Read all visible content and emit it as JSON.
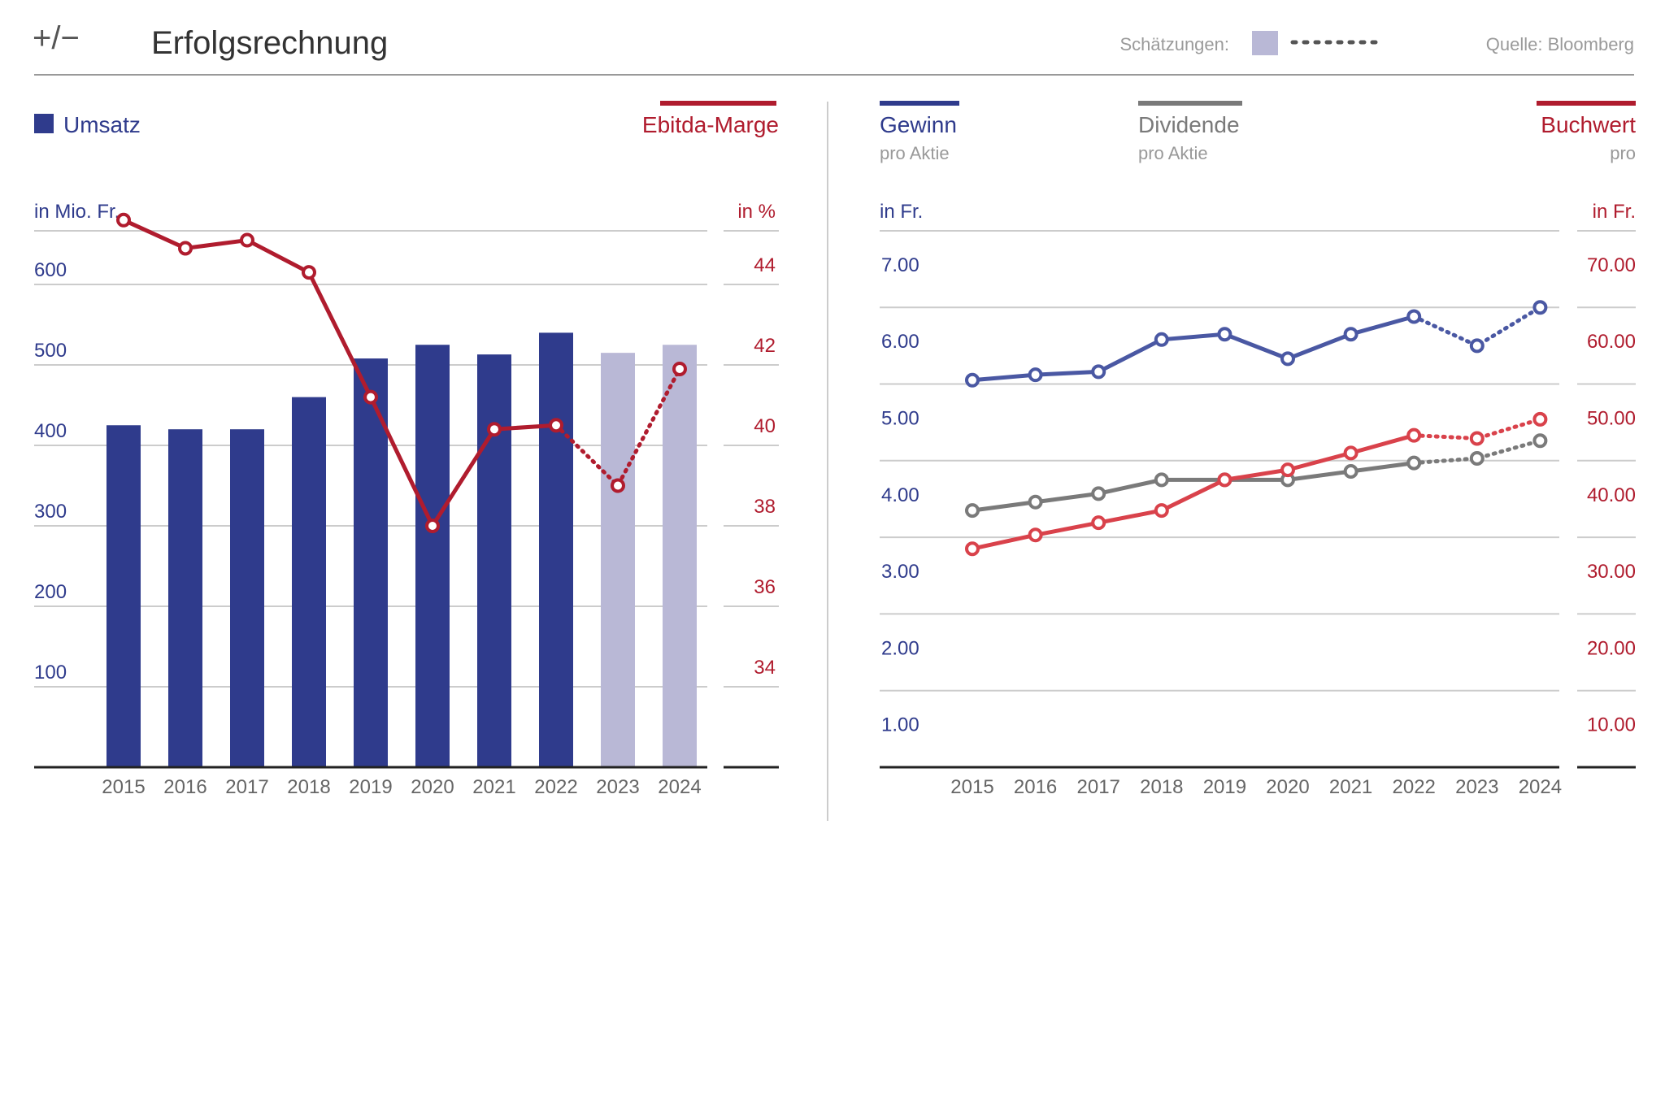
{
  "header": {
    "logo": "+/−",
    "title": "Erfolgsrechnung",
    "estimates_label": "Schätzungen:",
    "source": "Quelle: Bloomberg"
  },
  "colors": {
    "blue": "#2f3b8c",
    "estimate_blue": "#b9b8d6",
    "red": "#b01c2e",
    "line_blue": "#4a58a3",
    "grey": "#7a7a7a",
    "light_red": "#d9424b",
    "axis_grey": "#666666",
    "grid": "#cccccc"
  },
  "left_chart": {
    "legend_bar": "Umsatz",
    "legend_line": "Ebitda-Marge",
    "unit_left": "in Mio. Fr.",
    "unit_right": "in %"
  },
  "right_chart": {
    "legend_1": {
      "title": "Gewinn",
      "sub": "pro Aktie"
    },
    "legend_2": {
      "title": "Dividende",
      "sub": "pro Aktie"
    },
    "legend_3": {
      "title": "Buchwert",
      "sub": "pro"
    },
    "unit_left": "in Fr.",
    "unit_right": "in Fr."
  },
  "chart_data": [
    {
      "type": "bar",
      "categories": [
        "2015",
        "2016",
        "2017",
        "2018",
        "2019",
        "2020",
        "2021",
        "2022",
        "2023",
        "2024"
      ],
      "estimate_from_index": 8,
      "y_left": {
        "ticks": [
          100,
          200,
          300,
          400,
          500,
          600
        ],
        "range": [
          0,
          600
        ]
      },
      "y_right": {
        "ticks": [
          34,
          36,
          38,
          40,
          42,
          44
        ],
        "range": [
          32,
          44
        ]
      },
      "series": [
        {
          "name": "Umsatz",
          "axis": "left",
          "kind": "bar",
          "values": [
            425,
            420,
            420,
            460,
            508,
            525,
            513,
            540,
            515,
            525
          ]
        },
        {
          "name": "Ebitda-Marge",
          "axis": "right",
          "kind": "line",
          "values": [
            45.6,
            44.9,
            45.1,
            44.3,
            41.2,
            38.0,
            40.4,
            40.5,
            39.0,
            41.9
          ]
        }
      ]
    },
    {
      "type": "line",
      "categories": [
        "2015",
        "2016",
        "2017",
        "2018",
        "2019",
        "2020",
        "2021",
        "2022",
        "2023",
        "2024"
      ],
      "estimate_from_index": 8,
      "y_left": {
        "ticks": [
          "1.00",
          "2.00",
          "3.00",
          "4.00",
          "5.00",
          "6.00",
          "7.00"
        ],
        "range": [
          0,
          7
        ]
      },
      "y_right": {
        "ticks": [
          "10.00",
          "20.00",
          "30.00",
          "40.00",
          "50.00",
          "60.00",
          "70.00"
        ],
        "range": [
          0,
          70
        ]
      },
      "series": [
        {
          "name": "Gewinn",
          "axis": "left",
          "color_key": "line_blue",
          "values": [
            5.05,
            5.12,
            5.16,
            5.58,
            5.65,
            5.33,
            5.65,
            5.88,
            5.5,
            6.0
          ]
        },
        {
          "name": "Dividende",
          "axis": "left",
          "color_key": "grey",
          "values": [
            3.35,
            3.46,
            3.57,
            3.75,
            3.75,
            3.75,
            3.86,
            3.97,
            4.03,
            4.26
          ]
        },
        {
          "name": "Buchwert",
          "axis": "right",
          "color_key": "light_red",
          "values": [
            28.5,
            30.3,
            31.9,
            33.5,
            37.5,
            38.8,
            41.0,
            43.3,
            42.9,
            45.4
          ]
        }
      ]
    }
  ]
}
